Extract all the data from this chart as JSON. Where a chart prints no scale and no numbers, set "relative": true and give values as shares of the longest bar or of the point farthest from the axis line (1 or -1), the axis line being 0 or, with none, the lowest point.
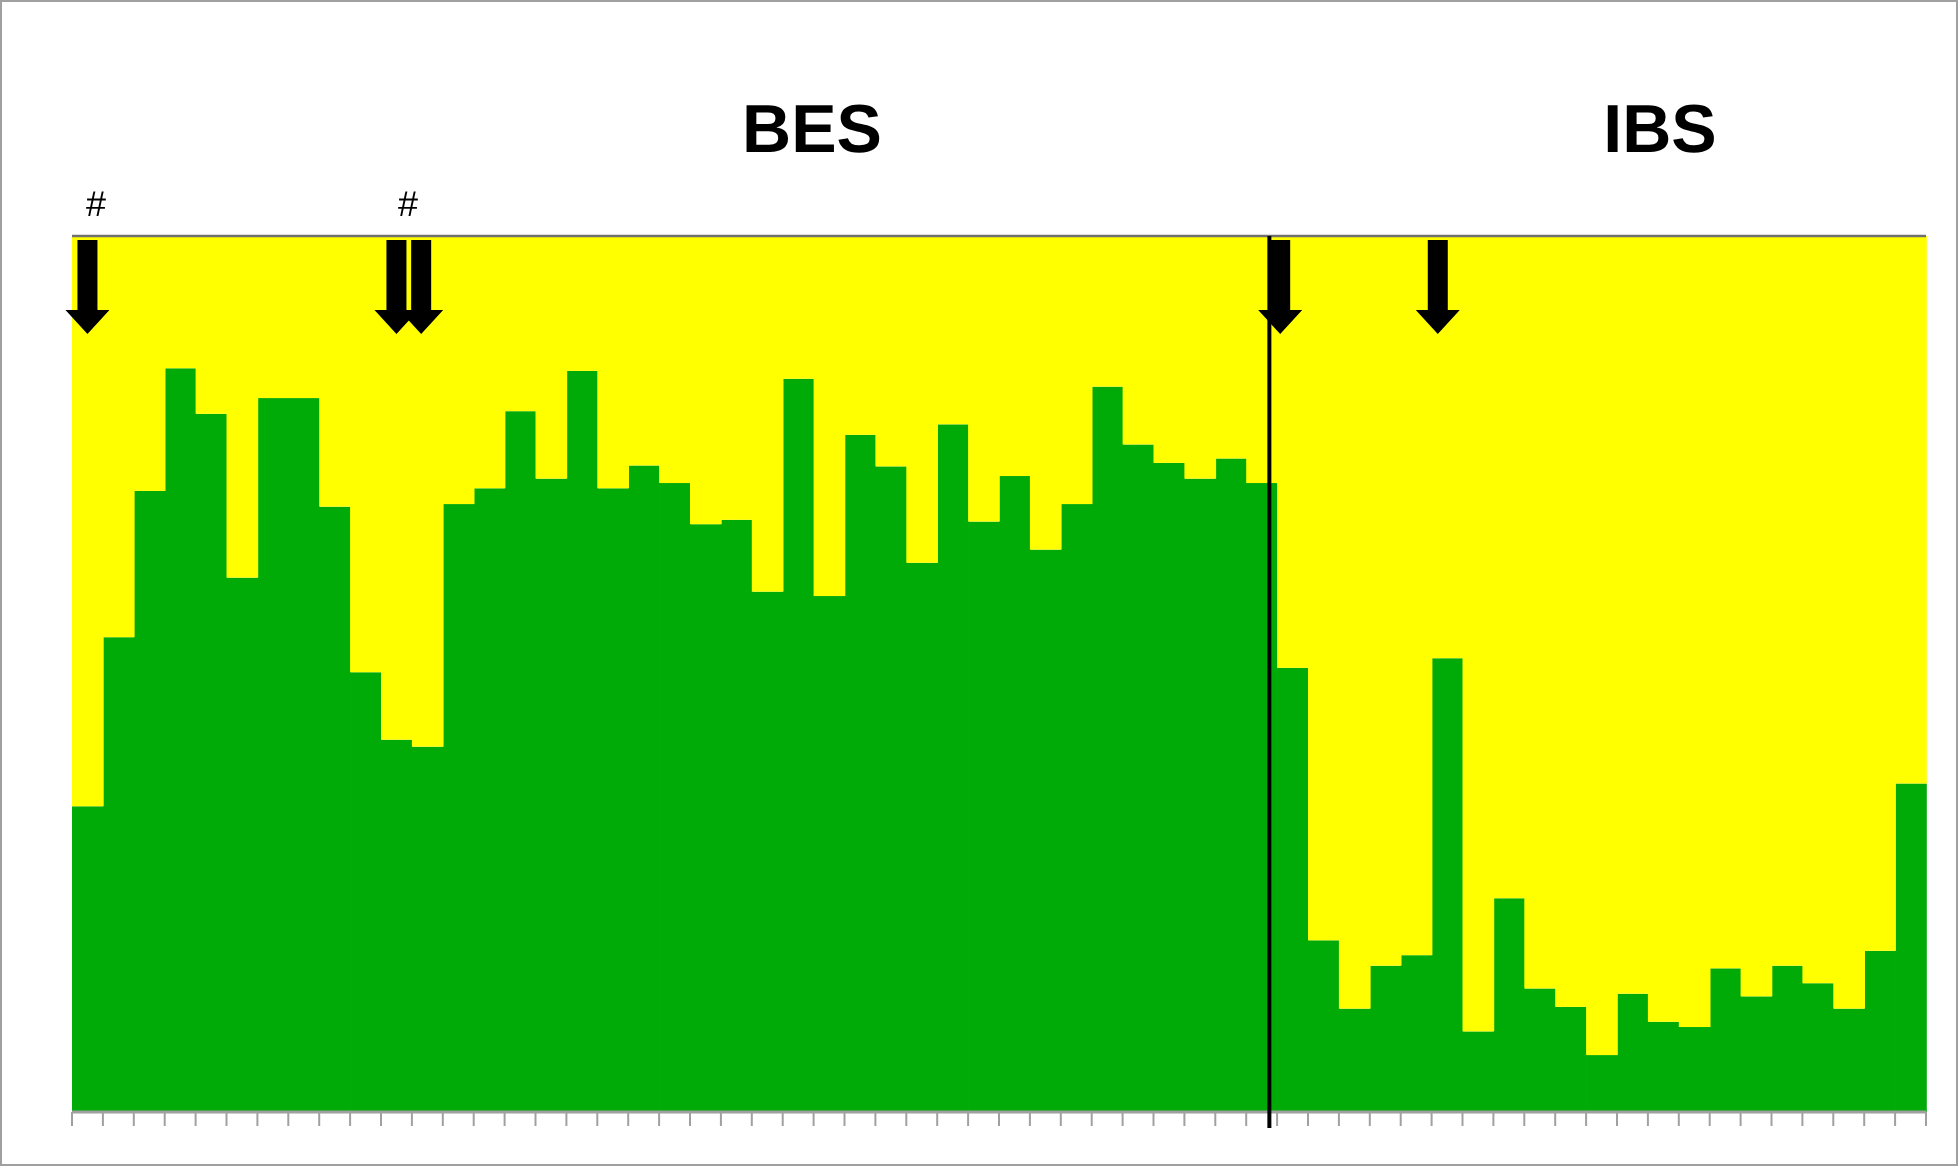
{
  "chart_data": {
    "type": "bar",
    "stacked": true,
    "relative": true,
    "categories": [
      null,
      null,
      null,
      null,
      null,
      null,
      null,
      null,
      null,
      null,
      null,
      null,
      null,
      null,
      null,
      null,
      null,
      null,
      null,
      null,
      null,
      null,
      null,
      null,
      null,
      null,
      null,
      null,
      null,
      null,
      null,
      null,
      null,
      null,
      null,
      null,
      null,
      null,
      null,
      null,
      null,
      null,
      null,
      null,
      null,
      null,
      null,
      null,
      null,
      null,
      null,
      null,
      null,
      null,
      null,
      null,
      null,
      null,
      null,
      null
    ],
    "series": [
      {
        "color": "#00ab08",
        "values": [
          0.349,
          0.542,
          0.709,
          0.849,
          0.797,
          0.61,
          0.815,
          0.815,
          0.691,
          0.502,
          0.425,
          0.417,
          0.694,
          0.712,
          0.8,
          0.723,
          0.846,
          0.712,
          0.738,
          0.718,
          0.671,
          0.676,
          0.594,
          0.837,
          0.589,
          0.773,
          0.737,
          0.627,
          0.785,
          0.674,
          0.726,
          0.642,
          0.694,
          0.828,
          0.762,
          0.741,
          0.723,
          0.746,
          0.718,
          0.507,
          0.196,
          0.118,
          0.167,
          0.179,
          0.518,
          0.092,
          0.244,
          0.141,
          0.12,
          0.065,
          0.135,
          0.103,
          0.097,
          0.164,
          0.132,
          0.167,
          0.147,
          0.118,
          0.184,
          0.375
        ]
      },
      {
        "color": "#ffff00",
        "values": [
          0.651,
          0.458,
          0.291,
          0.151,
          0.203,
          0.39,
          0.185,
          0.185,
          0.309,
          0.498,
          0.575,
          0.583,
          0.306,
          0.288,
          0.2,
          0.277,
          0.154,
          0.288,
          0.262,
          0.282,
          0.329,
          0.324,
          0.406,
          0.163,
          0.411,
          0.227,
          0.263,
          0.373,
          0.215,
          0.326,
          0.274,
          0.358,
          0.306,
          0.172,
          0.238,
          0.259,
          0.277,
          0.254,
          0.282,
          0.493,
          0.804,
          0.882,
          0.833,
          0.821,
          0.482,
          0.908,
          0.756,
          0.859,
          0.88,
          0.935,
          0.865,
          0.897,
          0.903,
          0.836,
          0.868,
          0.833,
          0.853,
          0.882,
          0.816,
          0.625
        ]
      }
    ],
    "annotations": [
      "BES",
      "IBS",
      "#",
      "#"
    ]
  }
}
